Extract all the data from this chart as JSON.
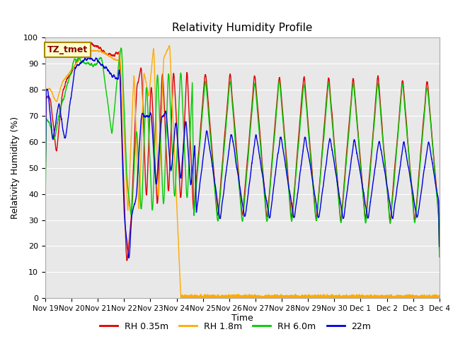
{
  "title": "Relativity Humidity Profile",
  "ylabel": "Relativity Humidity (%)",
  "xlabel": "Time",
  "ylim": [
    0,
    100
  ],
  "xtick_labels": [
    "Nov 19",
    "Nov 20",
    "Nov 21",
    "Nov 22",
    "Nov 23",
    "Nov 24",
    "Nov 25",
    "Nov 26",
    "Nov 27",
    "Nov 28",
    "Nov 29",
    "Nov 30",
    "Dec 1",
    "Dec 2",
    "Dec 3",
    "Dec 4"
  ],
  "series_colors": {
    "RH 0.35m": "#dd0000",
    "RH 1.8m": "#ffaa00",
    "RH 6.0m": "#00cc00",
    "22m": "#0000dd"
  },
  "annotation_text": "TZ_tmet",
  "annotation_bg": "#ffffcc",
  "annotation_edge": "#aa8800",
  "plot_bg_color": "#e8e8e8",
  "grid_color": "#ffffff",
  "ytick_major": 10,
  "line_width": 1.0,
  "n_days": 16
}
